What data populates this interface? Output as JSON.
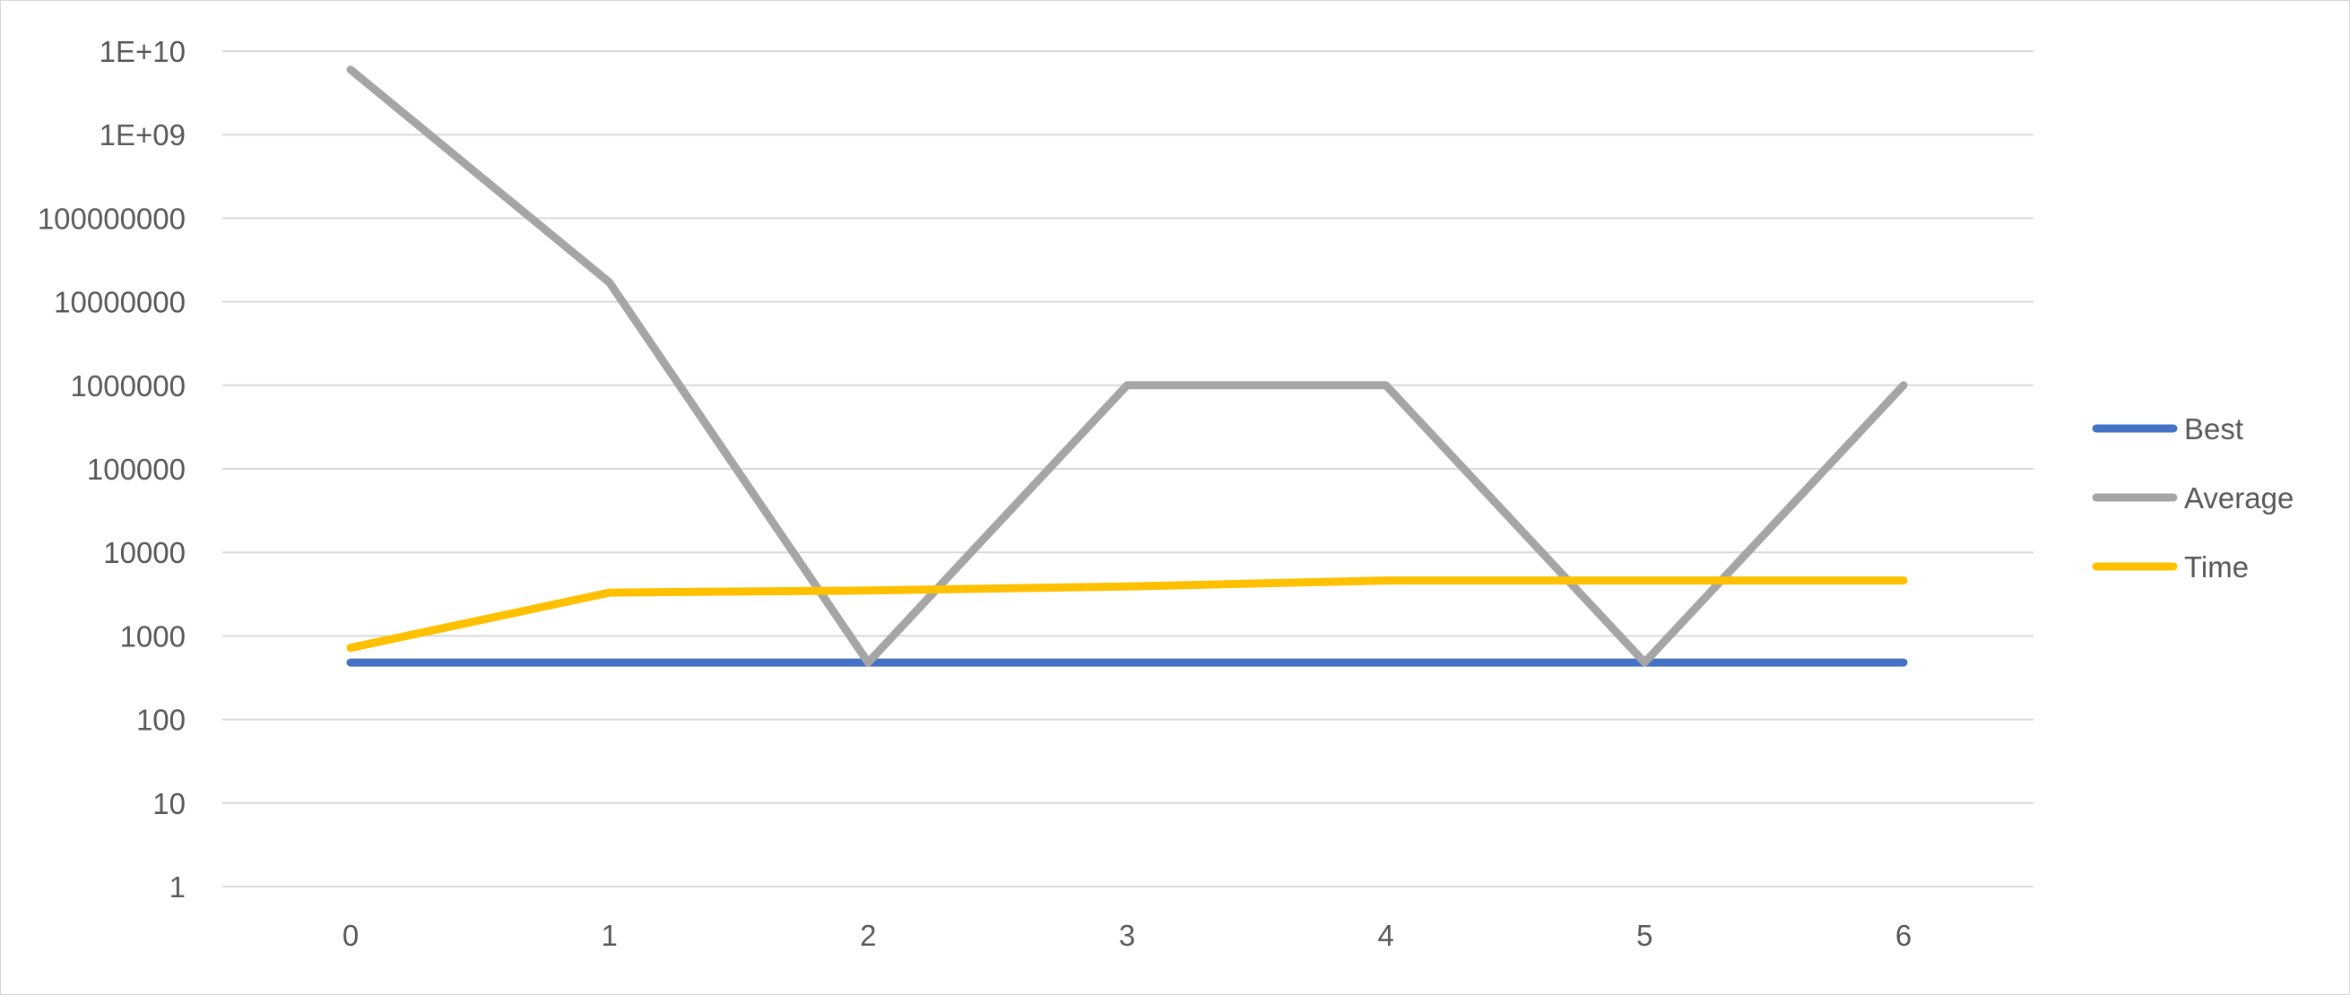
{
  "chart_data": {
    "type": "line",
    "yscale": "log",
    "ylim": [
      1,
      10000000000
    ],
    "grid": true,
    "legend_position": "right",
    "x": [
      0,
      1,
      2,
      3,
      4,
      5,
      6
    ],
    "x_tick_labels": [
      "0",
      "1",
      "2",
      "3",
      "4",
      "5",
      "6"
    ],
    "y_ticks": [
      1,
      10,
      100,
      1000,
      10000,
      100000,
      1000000,
      10000000,
      100000000,
      1000000000,
      10000000000
    ],
    "y_tick_labels": [
      "1",
      "10",
      "100",
      "1000",
      "10000",
      "100000",
      "1000000",
      "10000000",
      "100000000",
      "1E+09",
      "1E+10"
    ],
    "series": [
      {
        "name": "Best",
        "color": "#4472C4",
        "values": [
          480,
          480,
          480,
          480,
          480,
          480,
          480
        ]
      },
      {
        "name": "Average",
        "color": "#A5A5A5",
        "values": [
          6000000000,
          17000000,
          480,
          1000000,
          1000000,
          480,
          1000000
        ]
      },
      {
        "name": "Time",
        "color": "#FFC000",
        "values": [
          720,
          3300,
          3500,
          3900,
          4600,
          4600,
          4600
        ]
      }
    ]
  }
}
